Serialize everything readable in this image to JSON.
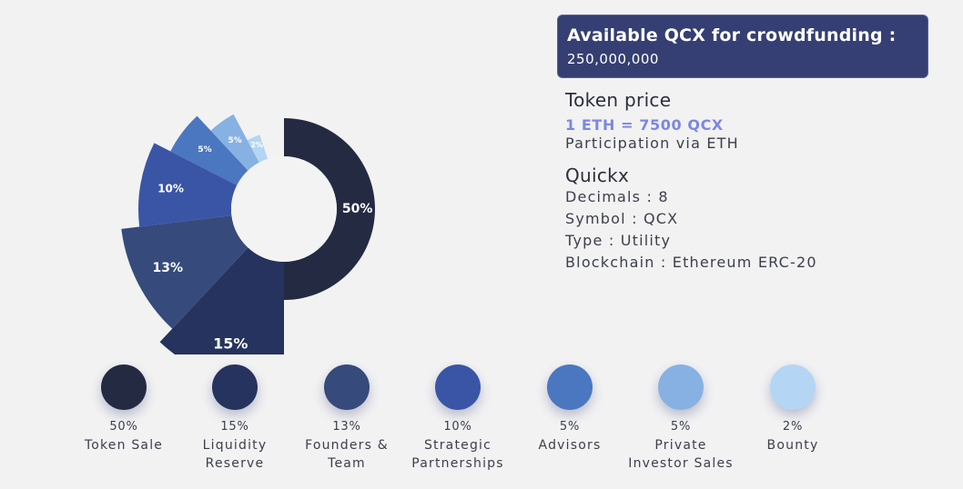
{
  "chart_data": {
    "type": "pie",
    "variant": "nightingale-rose-donut",
    "title": "",
    "slices": [
      {
        "label_lines": [
          "Token Sale"
        ],
        "value": 50,
        "value_label": "50%",
        "color": "#252a43"
      },
      {
        "label_lines": [
          "Liquidity",
          "Reserve"
        ],
        "value": 15,
        "value_label": "15%",
        "color": "#25335e"
      },
      {
        "label_lines": [
          "Founders &",
          "Team"
        ],
        "value": 13,
        "value_label": "13%",
        "color": "#364a7c"
      },
      {
        "label_lines": [
          "Strategic",
          "Partnerships"
        ],
        "value": 10,
        "value_label": "10%",
        "color": "#3a55a6"
      },
      {
        "label_lines": [
          "Advisors"
        ],
        "value": 5,
        "value_label": "5%",
        "color": "#4b77c0"
      },
      {
        "label_lines": [
          "Private",
          "Investor Sales"
        ],
        "value": 5,
        "value_label": "5%",
        "color": "#87b1e3"
      },
      {
        "label_lines": [
          "Bounty"
        ],
        "value": 2,
        "value_label": "2%",
        "color": "#b4d6f4"
      }
    ]
  },
  "banner": {
    "title": "Available QCX for crowdfunding :",
    "value": "250,000,000"
  },
  "token_price": {
    "heading": "Token price",
    "rate": "1 ETH = 7500 QCX",
    "note": "Participation via ETH"
  },
  "token": {
    "heading": "Quickx",
    "details": [
      "Decimals : 8",
      "Symbol : QCX",
      "Type : Utility",
      "Blockchain : Ethereum ERC-20"
    ]
  },
  "colors": {
    "accent_text": "#7b86e6",
    "banner_bg": "#353f73",
    "page_bg": "#f2f2f3"
  }
}
